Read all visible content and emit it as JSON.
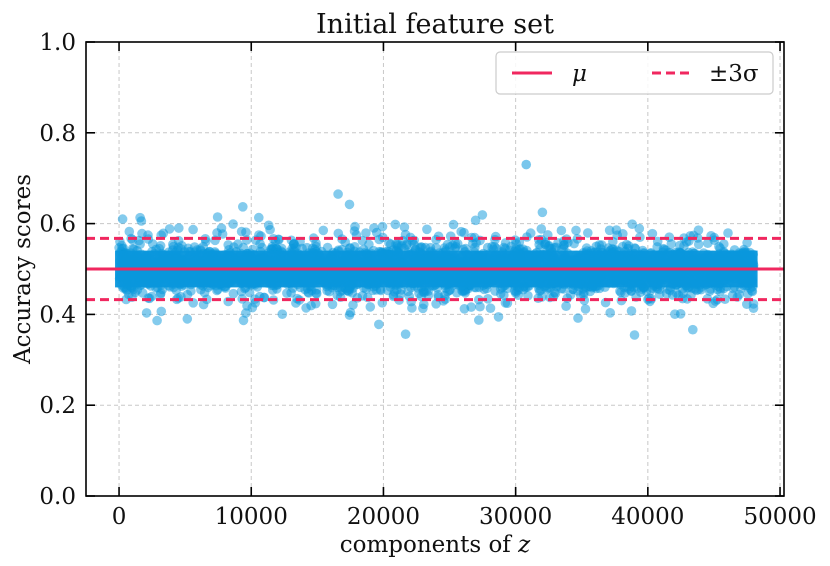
{
  "chart_data": {
    "type": "scatter",
    "title": "Initial feature set",
    "xlabel": "components of ",
    "xlabel_var": "z",
    "ylabel": "Accuracy scores",
    "xlim": [
      -2500,
      50300
    ],
    "ylim": [
      0.0,
      1.0
    ],
    "xticks": [
      0,
      10000,
      20000,
      30000,
      40000,
      50000
    ],
    "xtick_labels": [
      "0",
      "10000",
      "20000",
      "30000",
      "40000",
      "50000"
    ],
    "yticks": [
      0.0,
      0.2,
      0.4,
      0.6,
      0.8,
      1.0
    ],
    "ytick_labels": [
      "0.0",
      "0.2",
      "0.4",
      "0.6",
      "0.8",
      "1.0"
    ],
    "grid": true,
    "legend_position": "top-right",
    "series": [
      {
        "kind": "scatter",
        "color": "#0a97dc",
        "n_points": 48000,
        "x_range": [
          0,
          48000
        ],
        "mean": 0.5,
        "std": 0.0225,
        "min": 0.26,
        "max": 0.73
      }
    ],
    "lines": [
      {
        "label": "μ",
        "y": 0.5,
        "style": "solid",
        "color": "#f0275f"
      },
      {
        "label": "±3σ",
        "y": [
          0.4325,
          0.5675
        ],
        "style": "dashed",
        "color": "#f0275f"
      }
    ],
    "legend": {
      "mean_label": "μ",
      "band_label": "±3σ"
    }
  }
}
